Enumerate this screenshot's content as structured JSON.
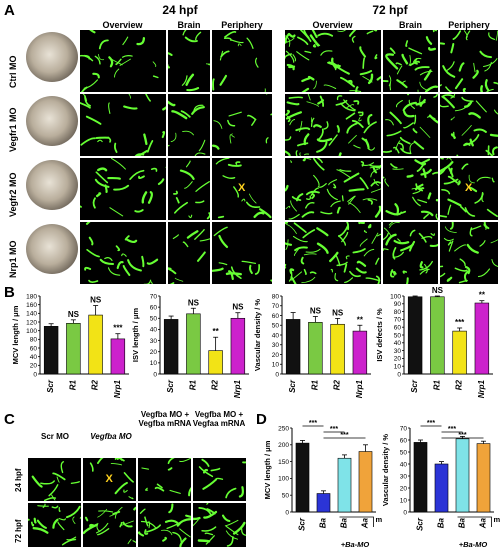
{
  "panel_labels": {
    "a": "A",
    "b": "B",
    "c": "C",
    "d": "D"
  },
  "panelA": {
    "time_24": "24 hpf",
    "time_72": "72 hpf",
    "col_overview": "Overview",
    "col_brain": "Brain",
    "col_periphery": "Periphery",
    "rows": [
      {
        "label": "Ctrl MO"
      },
      {
        "label": "Vegfr1 MO"
      },
      {
        "label": "Vegfr2 MO"
      },
      {
        "label": "Nrp1 MO"
      }
    ],
    "x_mark": "X"
  },
  "panelC": {
    "cols": [
      "Scr MO",
      "Vegfba MO",
      "Vegfba MO + Vegfba mRNA",
      "Vegfba MO + Vegfaa mRNA"
    ],
    "rows": [
      "24 hpf",
      "72 hpf"
    ],
    "x_mark": "X"
  },
  "colors": {
    "black": "#111111",
    "green": "#7ac943",
    "yellow": "#f2e316",
    "magenta": "#cc22cc",
    "blue": "#2b34d6",
    "cyan": "#7fe3e8",
    "orange": "#f0a33a",
    "fluor": "#66ff33"
  },
  "chart_data": [
    {
      "type": "bar",
      "ylabel": "MCV length / μm",
      "categories": [
        "Scr",
        "R1",
        "R2",
        "Nrp1"
      ],
      "values": [
        110,
        117,
        136,
        81
      ],
      "errors": [
        6,
        8,
        22,
        12
      ],
      "ylim": [
        0,
        180
      ],
      "yticks": [
        0,
        20,
        40,
        60,
        80,
        100,
        120,
        140,
        160,
        180
      ],
      "annotations": [
        "",
        "NS",
        "NS",
        "***"
      ],
      "colors": [
        "#111111",
        "#7ac943",
        "#f2e316",
        "#cc22cc"
      ]
    },
    {
      "type": "bar",
      "ylabel": "ISV length / μm",
      "categories": [
        "Scr",
        "R1",
        "R2",
        "Nrp1"
      ],
      "values": [
        49,
        54,
        21,
        50
      ],
      "errors": [
        3,
        5,
        12,
        5
      ],
      "ylim": [
        0,
        70
      ],
      "yticks": [
        0,
        10,
        20,
        30,
        40,
        50,
        60,
        70
      ],
      "annotations": [
        "",
        "NS",
        "**",
        "NS"
      ],
      "colors": [
        "#111111",
        "#7ac943",
        "#f2e316",
        "#cc22cc"
      ]
    },
    {
      "type": "bar",
      "ylabel": "Vascular density / %",
      "categories": [
        "Scr",
        "R1",
        "R2",
        "Nrp1"
      ],
      "values": [
        56,
        53,
        51,
        44
      ],
      "errors": [
        7,
        6,
        6,
        6
      ],
      "ylim": [
        0,
        80
      ],
      "yticks": [
        0,
        10,
        20,
        30,
        40,
        50,
        60,
        70,
        80
      ],
      "annotations": [
        "",
        "NS",
        "NS",
        "**"
      ],
      "colors": [
        "#111111",
        "#7ac943",
        "#f2e316",
        "#cc22cc"
      ]
    },
    {
      "type": "bar",
      "ylabel": "ISV defects / %",
      "categories": [
        "Scr",
        "R1",
        "R2",
        "Nrp1"
      ],
      "values": [
        99,
        99,
        55,
        91
      ],
      "errors": [
        1,
        1,
        4,
        3
      ],
      "ylim": [
        0,
        100
      ],
      "yticks": [
        0,
        10,
        20,
        30,
        40,
        50,
        60,
        70,
        80,
        90,
        100
      ],
      "annotations": [
        "",
        "NS",
        "***",
        "**"
      ],
      "colors": [
        "#111111",
        "#7ac943",
        "#f2e316",
        "#cc22cc"
      ]
    },
    {
      "type": "bar",
      "ylabel": "MCV length / μm",
      "categories": [
        "Scr",
        "Ba",
        "Ba",
        "Aa"
      ],
      "values": [
        205,
        55,
        160,
        180
      ],
      "errors": [
        8,
        8,
        10,
        20
      ],
      "ylim": [
        0,
        250
      ],
      "yticks": [
        0,
        50,
        100,
        150,
        200,
        250
      ],
      "colors": [
        "#111111",
        "#2b34d6",
        "#7fe3e8",
        "#f0a33a"
      ],
      "brackets": [
        {
          "from": 0,
          "to": 1,
          "label": "***"
        },
        {
          "from": 1,
          "to": 2,
          "label": "***"
        },
        {
          "from": 1,
          "to": 3,
          "label": "***"
        }
      ],
      "group_label": "mRNA",
      "under_label": "+Ba-MO"
    },
    {
      "type": "bar",
      "ylabel": "Vascular density / %",
      "categories": [
        "Scr",
        "Ba",
        "Ba",
        "Aa"
      ],
      "values": [
        58,
        40,
        61,
        57
      ],
      "errors": [
        2,
        2,
        2,
        2
      ],
      "ylim": [
        0,
        70
      ],
      "yticks": [
        0,
        10,
        20,
        30,
        40,
        50,
        60,
        70
      ],
      "colors": [
        "#111111",
        "#2b34d6",
        "#7fe3e8",
        "#f0a33a"
      ],
      "brackets": [
        {
          "from": 0,
          "to": 1,
          "label": "***"
        },
        {
          "from": 1,
          "to": 2,
          "label": "***"
        },
        {
          "from": 1,
          "to": 3,
          "label": "***"
        }
      ],
      "group_label": "mRNA",
      "under_label": "+Ba-MO"
    }
  ]
}
